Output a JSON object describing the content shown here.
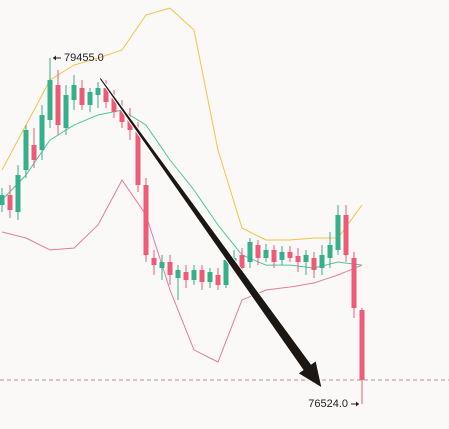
{
  "chart_data": {
    "type": "candlestick",
    "up_color": "#35b08a",
    "down_color": "#ef5a77",
    "open": [
      78210,
      78294,
      78150,
      78506,
      78718,
      78675,
      78930,
      79226,
      78862,
      79099,
      79201,
      79057,
      79141,
      79201,
      79116,
      79014,
      78930,
      78845,
      78379,
      77761,
      77676,
      77727,
      77591,
      77642,
      77574,
      77659,
      77557,
      77617,
      77532,
      77727,
      77786,
      77727,
      77871,
      77761,
      77829,
      77744,
      77812,
      77778,
      77727,
      77761,
      77676,
      77761,
      77829,
      78125,
      77761,
      77320
    ],
    "high": [
      78354,
      78379,
      78548,
      78887,
      78862,
      79057,
      79455,
      79353,
      79226,
      79311,
      79268,
      79201,
      79251,
      79268,
      79184,
      79099,
      79031,
      78913,
      78438,
      77829,
      77786,
      77786,
      77701,
      77701,
      77701,
      77701,
      77676,
      77676,
      77786,
      77829,
      77845,
      77930,
      77913,
      77879,
      77871,
      77862,
      77862,
      77845,
      77829,
      77812,
      77871,
      77981,
      78210,
      78210,
      77812,
      77337
    ],
    "low": [
      78150,
      78099,
      78083,
      78438,
      78523,
      78591,
      78862,
      78803,
      78803,
      79014,
      79014,
      78997,
      79031,
      79031,
      78946,
      78862,
      78760,
      78320,
      77727,
      77617,
      77574,
      77532,
      77405,
      77507,
      77532,
      77490,
      77507,
      77490,
      77507,
      77659,
      77642,
      77676,
      77701,
      77727,
      77676,
      77701,
      77727,
      77642,
      77617,
      77591,
      77617,
      77676,
      77786,
      77727,
      77252,
      76524
    ],
    "close": [
      78294,
      78167,
      78464,
      78845,
      78591,
      78972,
      79268,
      78887,
      79141,
      79226,
      79057,
      79167,
      79201,
      79082,
      78997,
      78913,
      78845,
      78379,
      77786,
      77701,
      77727,
      77617,
      77659,
      77574,
      77659,
      77557,
      77642,
      77532,
      77744,
      77761,
      77676,
      77896,
      77761,
      77829,
      77727,
      77812,
      77761,
      77727,
      77786,
      77659,
      77786,
      77871,
      78125,
      77786,
      77337,
      76727
    ],
    "series": [
      {
        "color": "#f2c24a",
        "values": [
          78506,
          78633,
          78760,
          78887,
          79014,
          79141,
          79268,
          79310,
          79353,
          79395,
          79415,
          79435,
          79455,
          79477,
          79500,
          79522,
          79621,
          79720,
          79819,
          79839,
          79858,
          79878,
          79816,
          79754,
          79692,
          79353,
          79014,
          78675,
          78455,
          78235,
          78015,
          77981,
          77947,
          77913,
          77913,
          77913,
          77913,
          77919,
          77924,
          77930,
          77930,
          77930,
          77930,
          78023,
          78117,
          78210
        ]
      },
      {
        "color": "#4cc79c",
        "values": [
          78252,
          78323,
          78393,
          78464,
          78563,
          78661,
          78760,
          78802,
          78845,
          78887,
          78915,
          78944,
          78972,
          78986,
          79000,
          79014,
          78972,
          78929,
          78887,
          78788,
          78690,
          78591,
          78506,
          78422,
          78337,
          78238,
          78139,
          78040,
          77955,
          77871,
          77786,
          77758,
          77729,
          77701,
          77701,
          77701,
          77701,
          77693,
          77684,
          77676,
          77693,
          77710,
          77727,
          77718,
          77710,
          77701
        ]
      },
      {
        "color": "#e57aa0",
        "values": [
          77981,
          77964,
          77947,
          77930,
          77896,
          77863,
          77829,
          77834,
          77840,
          77845,
          77910,
          77975,
          78040,
          78167,
          78294,
          78421,
          78322,
          78224,
          78125,
          77913,
          77702,
          77490,
          77321,
          77151,
          76982,
          76948,
          76914,
          76880,
          77055,
          77230,
          77405,
          77433,
          77462,
          77490,
          77498,
          77507,
          77515,
          77526,
          77538,
          77549,
          77572,
          77594,
          77617,
          77645,
          77673,
          77701
        ]
      }
    ],
    "annotations": [
      {
        "value": 79455,
        "label": "79455.0"
      },
      {
        "value": 76524,
        "label": "76524.0"
      }
    ]
  }
}
